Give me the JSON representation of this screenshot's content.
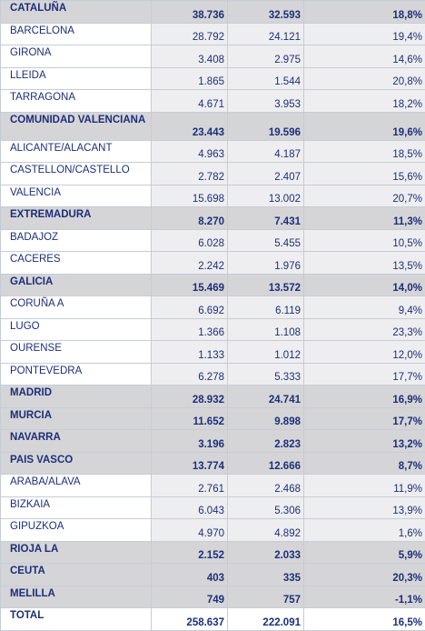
{
  "rows": [
    {
      "name": "CATALUÑA",
      "a": "38.736",
      "b": "32.593",
      "pct": "18,8%",
      "kind": "group"
    },
    {
      "name": "BARCELONA",
      "a": "28.792",
      "b": "24.121",
      "pct": "19,4%",
      "kind": "sub"
    },
    {
      "name": "GIRONA",
      "a": "3.408",
      "b": "2.975",
      "pct": "14,6%",
      "kind": "sub"
    },
    {
      "name": "LLEIDA",
      "a": "1.865",
      "b": "1.544",
      "pct": "20,8%",
      "kind": "sub"
    },
    {
      "name": "TARRAGONA",
      "a": "4.671",
      "b": "3.953",
      "pct": "18,2%",
      "kind": "sub"
    },
    {
      "name": "COMUNIDAD VALENCIANA",
      "a": "23.443",
      "b": "19.596",
      "pct": "19,6%",
      "kind": "group tall"
    },
    {
      "name": "ALICANTE/ALACANT",
      "a": "4.963",
      "b": "4.187",
      "pct": "18,5%",
      "kind": "sub"
    },
    {
      "name": "CASTELLON/CASTELLO",
      "a": "2.782",
      "b": "2.407",
      "pct": "15,6%",
      "kind": "sub"
    },
    {
      "name": "VALENCIA",
      "a": "15.698",
      "b": "13.002",
      "pct": "20,7%",
      "kind": "sub"
    },
    {
      "name": "EXTREMADURA",
      "a": "8.270",
      "b": "7.431",
      "pct": "11,3%",
      "kind": "group"
    },
    {
      "name": "BADAJOZ",
      "a": "6.028",
      "b": "5.455",
      "pct": "10,5%",
      "kind": "sub"
    },
    {
      "name": "CACERES",
      "a": "2.242",
      "b": "1.976",
      "pct": "13,5%",
      "kind": "sub"
    },
    {
      "name": "GALICIA",
      "a": "15.469",
      "b": "13.572",
      "pct": "14,0%",
      "kind": "group"
    },
    {
      "name": "CORUÑA A",
      "a": "6.692",
      "b": "6.119",
      "pct": "9,4%",
      "kind": "sub"
    },
    {
      "name": "LUGO",
      "a": "1.366",
      "b": "1.108",
      "pct": "23,3%",
      "kind": "sub"
    },
    {
      "name": "OURENSE",
      "a": "1.133",
      "b": "1.012",
      "pct": "12,0%",
      "kind": "sub"
    },
    {
      "name": "PONTEVEDRA",
      "a": "6.278",
      "b": "5.333",
      "pct": "17,7%",
      "kind": "sub"
    },
    {
      "name": "MADRID",
      "a": "28.932",
      "b": "24.741",
      "pct": "16,9%",
      "kind": "group"
    },
    {
      "name": "MURCIA",
      "a": "11.652",
      "b": "9.898",
      "pct": "17,7%",
      "kind": "group"
    },
    {
      "name": "NAVARRA",
      "a": "3.196",
      "b": "2.823",
      "pct": "13,2%",
      "kind": "group"
    },
    {
      "name": "PAIS VASCO",
      "a": "13.774",
      "b": "12.666",
      "pct": "8,7%",
      "kind": "group"
    },
    {
      "name": "ARABA/ALAVA",
      "a": "2.761",
      "b": "2.468",
      "pct": "11,9%",
      "kind": "sub"
    },
    {
      "name": "BIZKAIA",
      "a": "6.043",
      "b": "5.306",
      "pct": "13,9%",
      "kind": "sub"
    },
    {
      "name": "GIPUZKOA",
      "a": "4.970",
      "b": "4.892",
      "pct": "1,6%",
      "kind": "sub"
    },
    {
      "name": "RIOJA LA",
      "a": "2.152",
      "b": "2.033",
      "pct": "5,9%",
      "kind": "group"
    },
    {
      "name": "CEUTA",
      "a": "403",
      "b": "335",
      "pct": "20,3%",
      "kind": "group"
    },
    {
      "name": "MELILLA",
      "a": "749",
      "b": "757",
      "pct": "-1,1%",
      "kind": "group"
    },
    {
      "name": "TOTAL",
      "a": "258.637",
      "b": "222.091",
      "pct": "16,5%",
      "kind": "total"
    }
  ]
}
